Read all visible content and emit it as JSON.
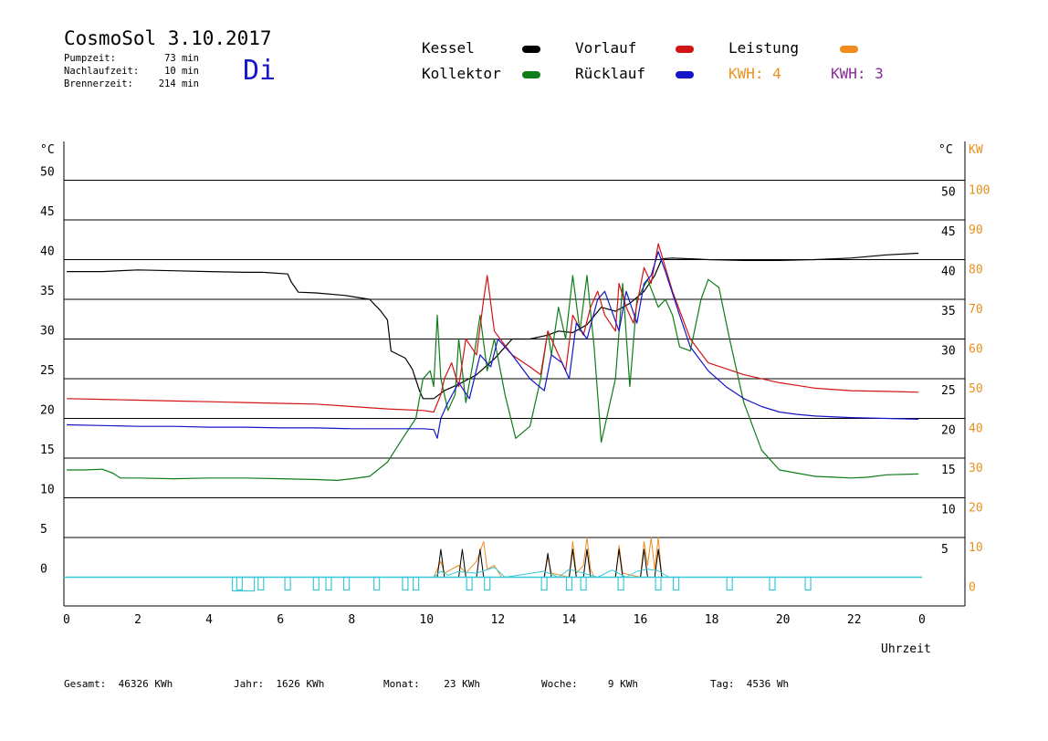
{
  "header": {
    "title": "CosmoSol 3.10.2017",
    "day": "Di",
    "info": [
      {
        "label": "Pumpzeit:",
        "value": "73 min"
      },
      {
        "label": "Nachlaufzeit:",
        "value": "10 min"
      },
      {
        "label": "Brennerzeit:",
        "value": "214 min"
      }
    ]
  },
  "legend": {
    "kessel": {
      "label": "Kessel",
      "color": "#000000"
    },
    "kollektor": {
      "label": "Kollektor",
      "color": "#0e7d18"
    },
    "vorlauf": {
      "label": "Vorlauf",
      "color": "#d21414"
    },
    "ruecklauf": {
      "label": "Rücklauf",
      "color": "#1414c8"
    },
    "leistung": {
      "label": "Leistung",
      "color": "#f28a1e"
    },
    "kwh1": {
      "label": "KWH:",
      "value": "4",
      "color": "#e8901c"
    },
    "kwh2": {
      "label": "KWH:",
      "value": "3",
      "color": "#8a2a9a"
    }
  },
  "footer": {
    "gesamt": {
      "label": "Gesamt:",
      "value": "46326 KWh"
    },
    "jahr": {
      "label": "Jahr:",
      "value": "1626 KWh"
    },
    "monat": {
      "label": "Monat:",
      "value": "23 KWh"
    },
    "woche": {
      "label": "Woche:",
      "value": "9 KWh"
    },
    "tag": {
      "label": "Tag:",
      "value": "4536 Wh"
    }
  },
  "chart_data": {
    "type": "line",
    "title": "CosmoSol 3.10.2017",
    "xlabel": "Uhrzeit",
    "ylabel": "°C",
    "ylabel_right": "°C",
    "ylabel_kw": "KW",
    "xlim": [
      0,
      24
    ],
    "ylim": [
      -3.5,
      55
    ],
    "x_ticks": [
      "0",
      "2",
      "4",
      "6",
      "8",
      "10",
      "12",
      "14",
      "16",
      "18",
      "20",
      "22",
      "0"
    ],
    "y_ticks": [
      0,
      5,
      10,
      15,
      20,
      25,
      30,
      35,
      40,
      45,
      50
    ],
    "kw_ticks": [
      0,
      10,
      20,
      30,
      40,
      50,
      60,
      70,
      80,
      90,
      100
    ],
    "grid": true,
    "series": [
      {
        "name": "Kessel",
        "color": "#000000",
        "x": [
          0,
          1,
          2,
          3,
          4,
          5,
          5.5,
          6.2,
          6.3,
          6.5,
          7,
          7.8,
          8.5,
          8.8,
          9.0,
          9.1,
          9.5,
          9.7,
          9.9,
          10.0,
          10.3,
          10.6,
          11.0,
          11.5,
          12.0,
          12.5,
          13.0,
          13.5,
          13.8,
          14.2,
          14.6,
          15.0,
          15.4,
          15.8,
          16.2,
          16.5,
          16.7,
          17.0,
          17.5,
          18.0,
          19.0,
          20.0,
          21.0,
          22.0,
          23.0,
          23.9
        ],
        "y": [
          38.5,
          38.5,
          38.7,
          38.6,
          38.5,
          38.4,
          38.4,
          38.2,
          37.2,
          35.9,
          35.8,
          35.5,
          35.0,
          33.6,
          32.4,
          28.5,
          27.6,
          26.2,
          23.5,
          22.5,
          22.5,
          23.5,
          24.3,
          25.5,
          27.5,
          30.0,
          30.0,
          30.5,
          31.0,
          30.8,
          31.8,
          34.0,
          33.5,
          34.5,
          36.0,
          38.0,
          40.1,
          40.2,
          40.1,
          40.0,
          39.9,
          39.9,
          40.0,
          40.2,
          40.6,
          40.8
        ]
      },
      {
        "name": "Kollektor",
        "color": "#0e7d18",
        "x": [
          0,
          0.5,
          1.0,
          1.3,
          1.5,
          2,
          3,
          4,
          5,
          6,
          7,
          7.6,
          8,
          8.5,
          9.0,
          9.5,
          9.8,
          10.0,
          10.2,
          10.3,
          10.4,
          10.5,
          10.7,
          10.9,
          11.0,
          11.2,
          11.4,
          11.6,
          11.8,
          12.0,
          12.3,
          12.6,
          13.0,
          13.3,
          13.5,
          13.6,
          13.8,
          14.0,
          14.2,
          14.4,
          14.6,
          14.8,
          15.0,
          15.2,
          15.4,
          15.6,
          15.8,
          16.0,
          16.3,
          16.6,
          16.8,
          17.0,
          17.2,
          17.5,
          17.8,
          18.0,
          18.3,
          18.6,
          19.0,
          19.5,
          20.0,
          21.0,
          21.5,
          22.0,
          22.5,
          23.0,
          23.9
        ],
        "y": [
          13.5,
          13.5,
          13.6,
          13.1,
          12.5,
          12.5,
          12.4,
          12.5,
          12.5,
          12.4,
          12.3,
          12.2,
          12.4,
          12.7,
          14.5,
          18.0,
          20.0,
          25.0,
          26.0,
          24.0,
          33.0,
          25.0,
          21.0,
          23.0,
          30.0,
          22.0,
          27.0,
          33.0,
          26.0,
          30.0,
          23.0,
          17.5,
          19.0,
          25.0,
          31.0,
          28.0,
          34.0,
          30.0,
          38.0,
          31.0,
          38.0,
          29.0,
          17.0,
          21.0,
          25.0,
          37.0,
          24.0,
          35.0,
          37.5,
          34.0,
          35.0,
          33.0,
          29.0,
          28.5,
          35.0,
          37.5,
          36.5,
          30.0,
          22.0,
          16.0,
          13.5,
          12.7,
          12.6,
          12.5,
          12.6,
          12.9,
          13.0
        ]
      },
      {
        "name": "Vorlauf",
        "color": "#d21414",
        "x": [
          0,
          1,
          2,
          3,
          4,
          5,
          6,
          7,
          8,
          9,
          10,
          10.3,
          10.5,
          10.6,
          10.8,
          11.0,
          11.2,
          11.5,
          11.7,
          11.8,
          12.0,
          12.5,
          13.0,
          13.3,
          13.5,
          13.8,
          14.0,
          14.2,
          14.5,
          14.7,
          14.9,
          15.1,
          15.4,
          15.5,
          15.7,
          15.9,
          16.2,
          16.4,
          16.6,
          16.8,
          17.0,
          17.5,
          18.0,
          19.0,
          20.0,
          21.0,
          22.0,
          23.0,
          23.9
        ],
        "y": [
          22.5,
          22.4,
          22.3,
          22.2,
          22.1,
          22.0,
          21.9,
          21.8,
          21.5,
          21.2,
          21.0,
          20.8,
          23.0,
          25.0,
          27.0,
          24.0,
          30.0,
          28.0,
          35.0,
          38.0,
          31.0,
          28.0,
          26.5,
          25.5,
          31.0,
          28.0,
          26.0,
          33.0,
          30.5,
          34.0,
          36.0,
          33.0,
          31.0,
          37.0,
          34.0,
          32.0,
          39.0,
          37.0,
          42.0,
          39.0,
          36.0,
          30.0,
          27.0,
          25.5,
          24.5,
          23.8,
          23.5,
          23.4,
          23.3
        ]
      },
      {
        "name": "Rücklauf",
        "color": "#1414c8",
        "x": [
          0,
          1,
          2,
          3,
          4,
          5,
          6,
          7,
          8,
          9,
          10,
          10.3,
          10.4,
          10.5,
          10.7,
          11.0,
          11.3,
          11.6,
          11.9,
          12.1,
          12.5,
          13.0,
          13.4,
          13.6,
          13.9,
          14.1,
          14.3,
          14.6,
          14.9,
          15.1,
          15.5,
          15.7,
          16.0,
          16.2,
          16.4,
          16.6,
          16.8,
          17.2,
          17.5,
          18.0,
          18.5,
          19.0,
          19.5,
          20.0,
          20.5,
          21.0,
          22.0,
          23.0,
          23.9
        ],
        "y": [
          19.2,
          19.1,
          19.0,
          19.0,
          18.9,
          18.9,
          18.8,
          18.8,
          18.7,
          18.7,
          18.7,
          18.6,
          17.5,
          20.0,
          22.0,
          24.5,
          22.5,
          28.0,
          26.5,
          30.0,
          28.0,
          25.0,
          23.5,
          28.0,
          27.0,
          25.0,
          32.0,
          30.0,
          35.0,
          36.0,
          31.0,
          36.0,
          32.0,
          37.0,
          38.0,
          41.0,
          38.5,
          33.0,
          29.0,
          26.0,
          24.0,
          22.5,
          21.5,
          20.8,
          20.5,
          20.3,
          20.1,
          20.0,
          19.9
        ]
      },
      {
        "name": "Leistung",
        "color": "#f28a1e",
        "unit": "KW",
        "x": [
          10.3,
          10.5,
          10.6,
          11.0,
          11.2,
          11.5,
          11.7,
          11.8,
          12.0,
          12.2,
          13.4,
          13.5,
          13.6,
          14.1,
          14.2,
          14.3,
          14.5,
          14.6,
          14.7,
          14.8,
          15.4,
          15.5,
          15.6,
          16.1,
          16.2,
          16.3,
          16.4,
          16.5,
          16.6,
          16.7
        ],
        "y": [
          0,
          4,
          1,
          3,
          1,
          4,
          9,
          2,
          3,
          0,
          0,
          5,
          1,
          0,
          9,
          1,
          3,
          10,
          2,
          0,
          0,
          8,
          1,
          0,
          9,
          3,
          10,
          2,
          10,
          0
        ]
      },
      {
        "name": "Kessel Brenner",
        "color": "#000000",
        "unit": "KW",
        "x": [
          10.4,
          10.5,
          10.6,
          11.0,
          11.1,
          11.2,
          11.5,
          11.6,
          11.7,
          13.4,
          13.5,
          13.6,
          14.1,
          14.2,
          14.3,
          14.5,
          14.6,
          14.7,
          15.4,
          15.5,
          15.6,
          16.1,
          16.2,
          16.3,
          16.5,
          16.6,
          16.7
        ],
        "y": [
          0,
          7,
          0,
          0,
          7,
          0,
          0,
          7,
          0,
          0,
          6,
          0,
          0,
          7,
          0,
          0,
          7,
          0,
          0,
          7,
          0,
          0,
          7,
          0,
          0,
          7,
          0
        ]
      },
      {
        "name": "Pumpe",
        "color": "#38c8d8",
        "unit": "KW",
        "x": [
          0,
          10.3,
          10.5,
          10.7,
          11.0,
          11.5,
          12.0,
          12.3,
          13.4,
          13.8,
          14.1,
          14.5,
          14.9,
          15.3,
          15.7,
          16.0,
          16.3,
          16.6,
          16.9,
          17.2,
          23.9
        ],
        "y": [
          0,
          0,
          1.5,
          0.5,
          1.4,
          1.0,
          2.5,
          0,
          1.5,
          0,
          2.0,
          1.0,
          0,
          1.8,
          0,
          1.5,
          2.0,
          1.6,
          0,
          0,
          0
        ]
      }
    ]
  }
}
